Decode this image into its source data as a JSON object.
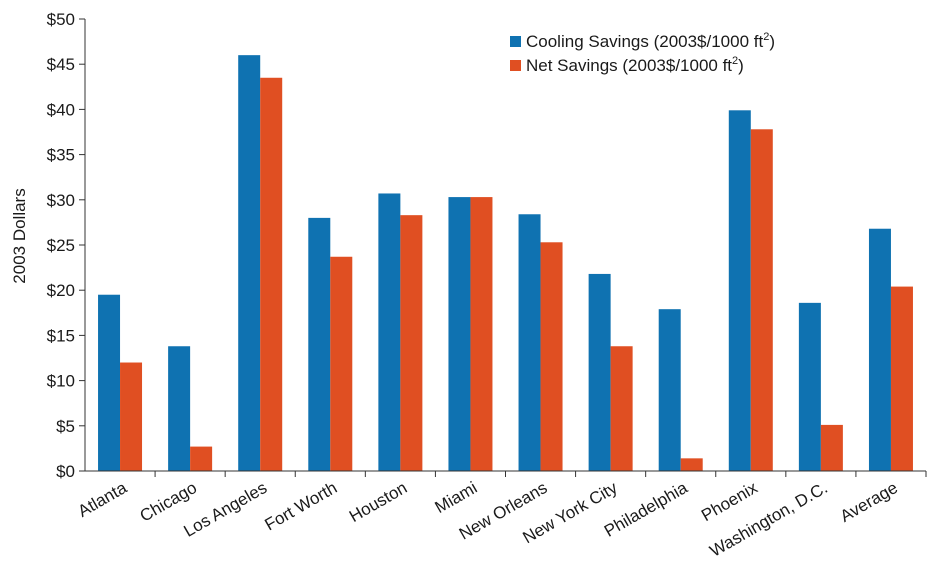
{
  "chart_data": {
    "type": "bar",
    "title": "",
    "xlabel": "",
    "ylabel": "2003 Dollars",
    "ylim": [
      0,
      50
    ],
    "y_tick_step": 5,
    "y_tick_prefix": "$",
    "grid": false,
    "legend_position": "top-right",
    "categories": [
      "Atlanta",
      "Chicago",
      "Los Angeles",
      "Fort Worth",
      "Houston",
      "Miami",
      "New Orleans",
      "New York City",
      "Philadelphia",
      "Phoenix",
      "Washington, D.C.",
      "Average"
    ],
    "series": [
      {
        "name": "Cooling Savings (2003$/1000 ft2)",
        "legend_base": "Cooling Savings (2003$/1000 ft",
        "legend_sup": "2",
        "legend_tail": ")",
        "color": "#0f72b1",
        "values": [
          19.5,
          13.8,
          46.0,
          28.0,
          30.7,
          30.3,
          28.4,
          21.8,
          17.9,
          39.9,
          18.6,
          26.8
        ]
      },
      {
        "name": "Net Savings (2003$/1000 ft2)",
        "legend_base": "Net Savings (2003$/1000 ft",
        "legend_sup": "2",
        "legend_tail": ")",
        "color": "#e04f22",
        "values": [
          12.0,
          2.7,
          43.5,
          23.7,
          28.3,
          30.3,
          25.3,
          13.8,
          1.4,
          37.8,
          5.1,
          20.4
        ]
      }
    ]
  }
}
